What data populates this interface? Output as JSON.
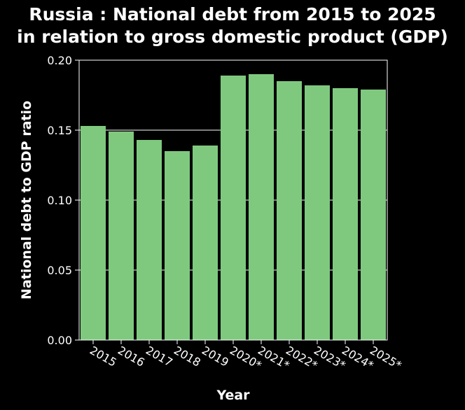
{
  "chart_data": {
    "type": "bar",
    "title_lines": [
      "Russia : National debt from 2015 to 2025",
      "in relation to gross domestic product (GDP)"
    ],
    "xlabel": "Year",
    "ylabel": "National debt to GDP ratio",
    "categories": [
      "2015",
      "2016",
      "2017",
      "2018",
      "2019",
      "2020*",
      "2021*",
      "2022*",
      "2023*",
      "2024*",
      "2025*"
    ],
    "values": [
      0.153,
      0.149,
      0.143,
      0.135,
      0.139,
      0.189,
      0.19,
      0.185,
      0.182,
      0.18,
      0.179
    ],
    "ylim": [
      0,
      0.2
    ],
    "yticks": [
      "0.00",
      "0.05",
      "0.10",
      "0.15",
      "0.20"
    ],
    "grid": true,
    "bar_color": "#7fc97f",
    "background_color": "#000000",
    "grid_color": "#ffffff"
  }
}
